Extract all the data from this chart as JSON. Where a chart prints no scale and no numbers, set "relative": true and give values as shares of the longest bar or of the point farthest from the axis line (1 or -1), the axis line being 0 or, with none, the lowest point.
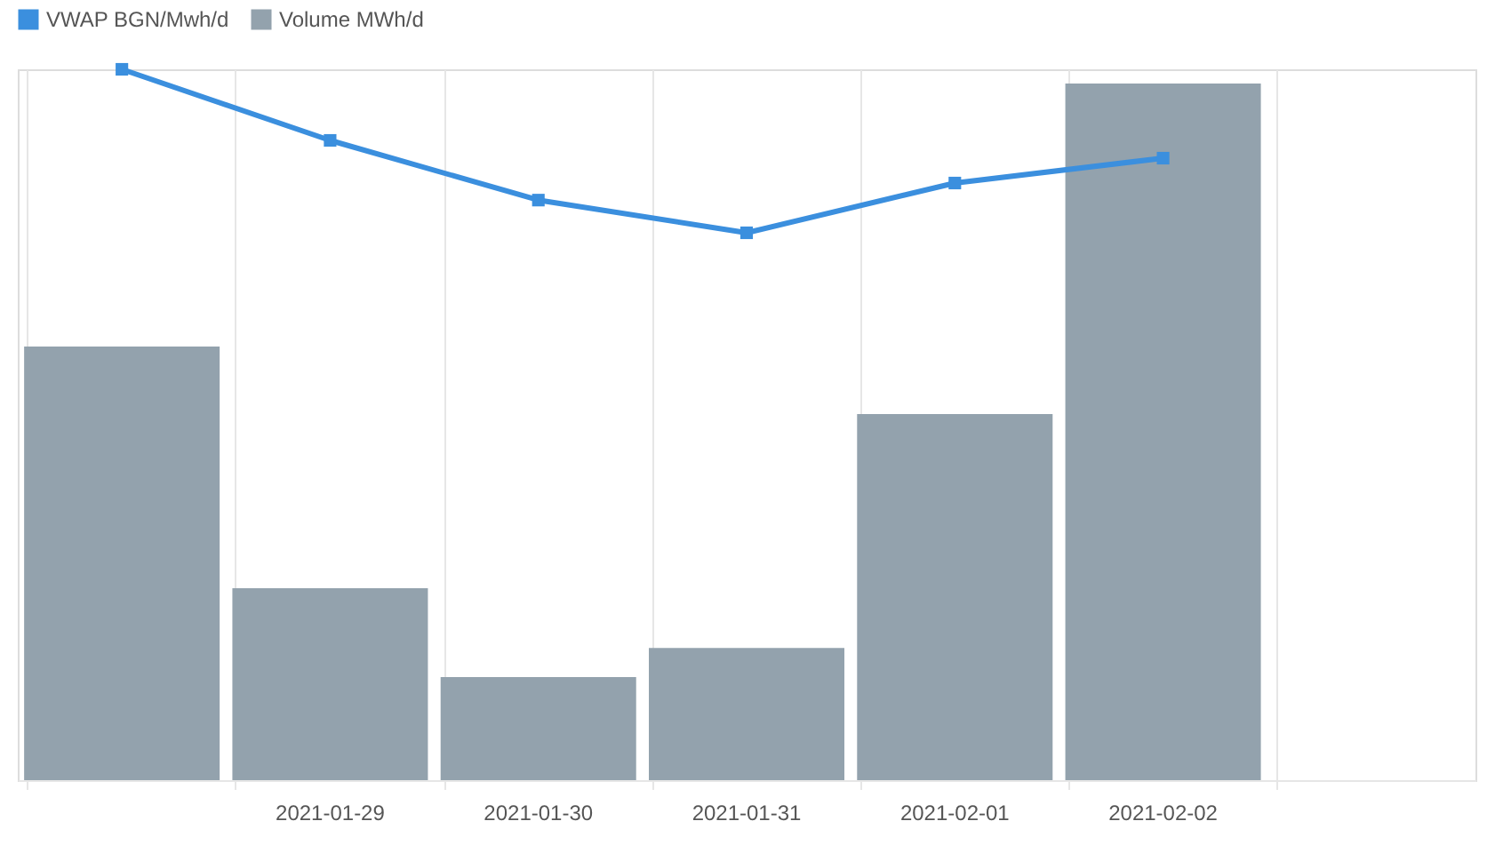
{
  "chart_data": {
    "type": "bar",
    "relative": true,
    "categories": [
      null,
      "2021-01-29",
      "2021-01-30",
      "2021-01-31",
      "2021-02-01",
      "2021-02-02",
      null
    ],
    "series": [
      {
        "name": "VWAP BGN/Mwh/d",
        "type": "line",
        "color": "#3b8fde",
        "marker": "square",
        "values": [
          1,
          0.9,
          0.816,
          0.77,
          0.84,
          0.875,
          null
        ]
      },
      {
        "name": "Volume MWh/d",
        "color": "#93a2ad",
        "values": [
          0.61,
          0.27,
          0.145,
          0.186,
          0.515,
          0.98,
          null
        ]
      }
    ],
    "grid": "x",
    "legend": "top",
    "line_style": "solid"
  }
}
